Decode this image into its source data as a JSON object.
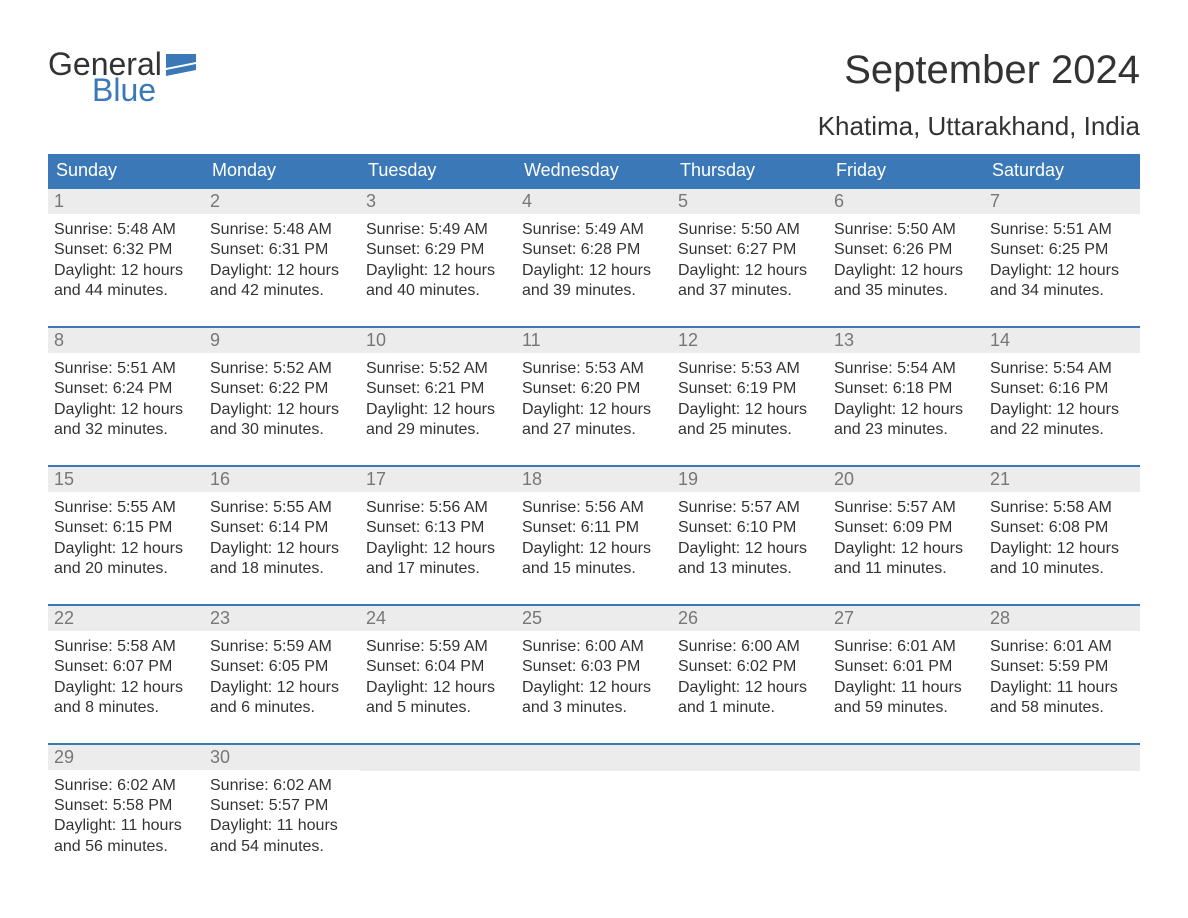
{
  "logo": {
    "general": "General",
    "blue": "Blue"
  },
  "title": "September 2024",
  "location": "Khatima, Uttarakhand, India",
  "colors": {
    "header_bg": "#3a78b8",
    "header_text": "#ffffff",
    "daynum_bg": "#ececec",
    "daynum_text": "#777777",
    "body_text": "#333333",
    "rule": "#3a78b8"
  },
  "days_of_week": [
    "Sunday",
    "Monday",
    "Tuesday",
    "Wednesday",
    "Thursday",
    "Friday",
    "Saturday"
  ],
  "labels": {
    "sunrise": "Sunrise: ",
    "sunset": "Sunset: ",
    "daylight": "Daylight: "
  },
  "weeks": [
    [
      {
        "d": "1",
        "sr": "5:48 AM",
        "ss": "6:32 PM",
        "dl": "12 hours and 44 minutes."
      },
      {
        "d": "2",
        "sr": "5:48 AM",
        "ss": "6:31 PM",
        "dl": "12 hours and 42 minutes."
      },
      {
        "d": "3",
        "sr": "5:49 AM",
        "ss": "6:29 PM",
        "dl": "12 hours and 40 minutes."
      },
      {
        "d": "4",
        "sr": "5:49 AM",
        "ss": "6:28 PM",
        "dl": "12 hours and 39 minutes."
      },
      {
        "d": "5",
        "sr": "5:50 AM",
        "ss": "6:27 PM",
        "dl": "12 hours and 37 minutes."
      },
      {
        "d": "6",
        "sr": "5:50 AM",
        "ss": "6:26 PM",
        "dl": "12 hours and 35 minutes."
      },
      {
        "d": "7",
        "sr": "5:51 AM",
        "ss": "6:25 PM",
        "dl": "12 hours and 34 minutes."
      }
    ],
    [
      {
        "d": "8",
        "sr": "5:51 AM",
        "ss": "6:24 PM",
        "dl": "12 hours and 32 minutes."
      },
      {
        "d": "9",
        "sr": "5:52 AM",
        "ss": "6:22 PM",
        "dl": "12 hours and 30 minutes."
      },
      {
        "d": "10",
        "sr": "5:52 AM",
        "ss": "6:21 PM",
        "dl": "12 hours and 29 minutes."
      },
      {
        "d": "11",
        "sr": "5:53 AM",
        "ss": "6:20 PM",
        "dl": "12 hours and 27 minutes."
      },
      {
        "d": "12",
        "sr": "5:53 AM",
        "ss": "6:19 PM",
        "dl": "12 hours and 25 minutes."
      },
      {
        "d": "13",
        "sr": "5:54 AM",
        "ss": "6:18 PM",
        "dl": "12 hours and 23 minutes."
      },
      {
        "d": "14",
        "sr": "5:54 AM",
        "ss": "6:16 PM",
        "dl": "12 hours and 22 minutes."
      }
    ],
    [
      {
        "d": "15",
        "sr": "5:55 AM",
        "ss": "6:15 PM",
        "dl": "12 hours and 20 minutes."
      },
      {
        "d": "16",
        "sr": "5:55 AM",
        "ss": "6:14 PM",
        "dl": "12 hours and 18 minutes."
      },
      {
        "d": "17",
        "sr": "5:56 AM",
        "ss": "6:13 PM",
        "dl": "12 hours and 17 minutes."
      },
      {
        "d": "18",
        "sr": "5:56 AM",
        "ss": "6:11 PM",
        "dl": "12 hours and 15 minutes."
      },
      {
        "d": "19",
        "sr": "5:57 AM",
        "ss": "6:10 PM",
        "dl": "12 hours and 13 minutes."
      },
      {
        "d": "20",
        "sr": "5:57 AM",
        "ss": "6:09 PM",
        "dl": "12 hours and 11 minutes."
      },
      {
        "d": "21",
        "sr": "5:58 AM",
        "ss": "6:08 PM",
        "dl": "12 hours and 10 minutes."
      }
    ],
    [
      {
        "d": "22",
        "sr": "5:58 AM",
        "ss": "6:07 PM",
        "dl": "12 hours and 8 minutes."
      },
      {
        "d": "23",
        "sr": "5:59 AM",
        "ss": "6:05 PM",
        "dl": "12 hours and 6 minutes."
      },
      {
        "d": "24",
        "sr": "5:59 AM",
        "ss": "6:04 PM",
        "dl": "12 hours and 5 minutes."
      },
      {
        "d": "25",
        "sr": "6:00 AM",
        "ss": "6:03 PM",
        "dl": "12 hours and 3 minutes."
      },
      {
        "d": "26",
        "sr": "6:00 AM",
        "ss": "6:02 PM",
        "dl": "12 hours and 1 minute."
      },
      {
        "d": "27",
        "sr": "6:01 AM",
        "ss": "6:01 PM",
        "dl": "11 hours and 59 minutes."
      },
      {
        "d": "28",
        "sr": "6:01 AM",
        "ss": "5:59 PM",
        "dl": "11 hours and 58 minutes."
      }
    ],
    [
      {
        "d": "29",
        "sr": "6:02 AM",
        "ss": "5:58 PM",
        "dl": "11 hours and 56 minutes."
      },
      {
        "d": "30",
        "sr": "6:02 AM",
        "ss": "5:57 PM",
        "dl": "11 hours and 54 minutes."
      },
      null,
      null,
      null,
      null,
      null
    ]
  ]
}
